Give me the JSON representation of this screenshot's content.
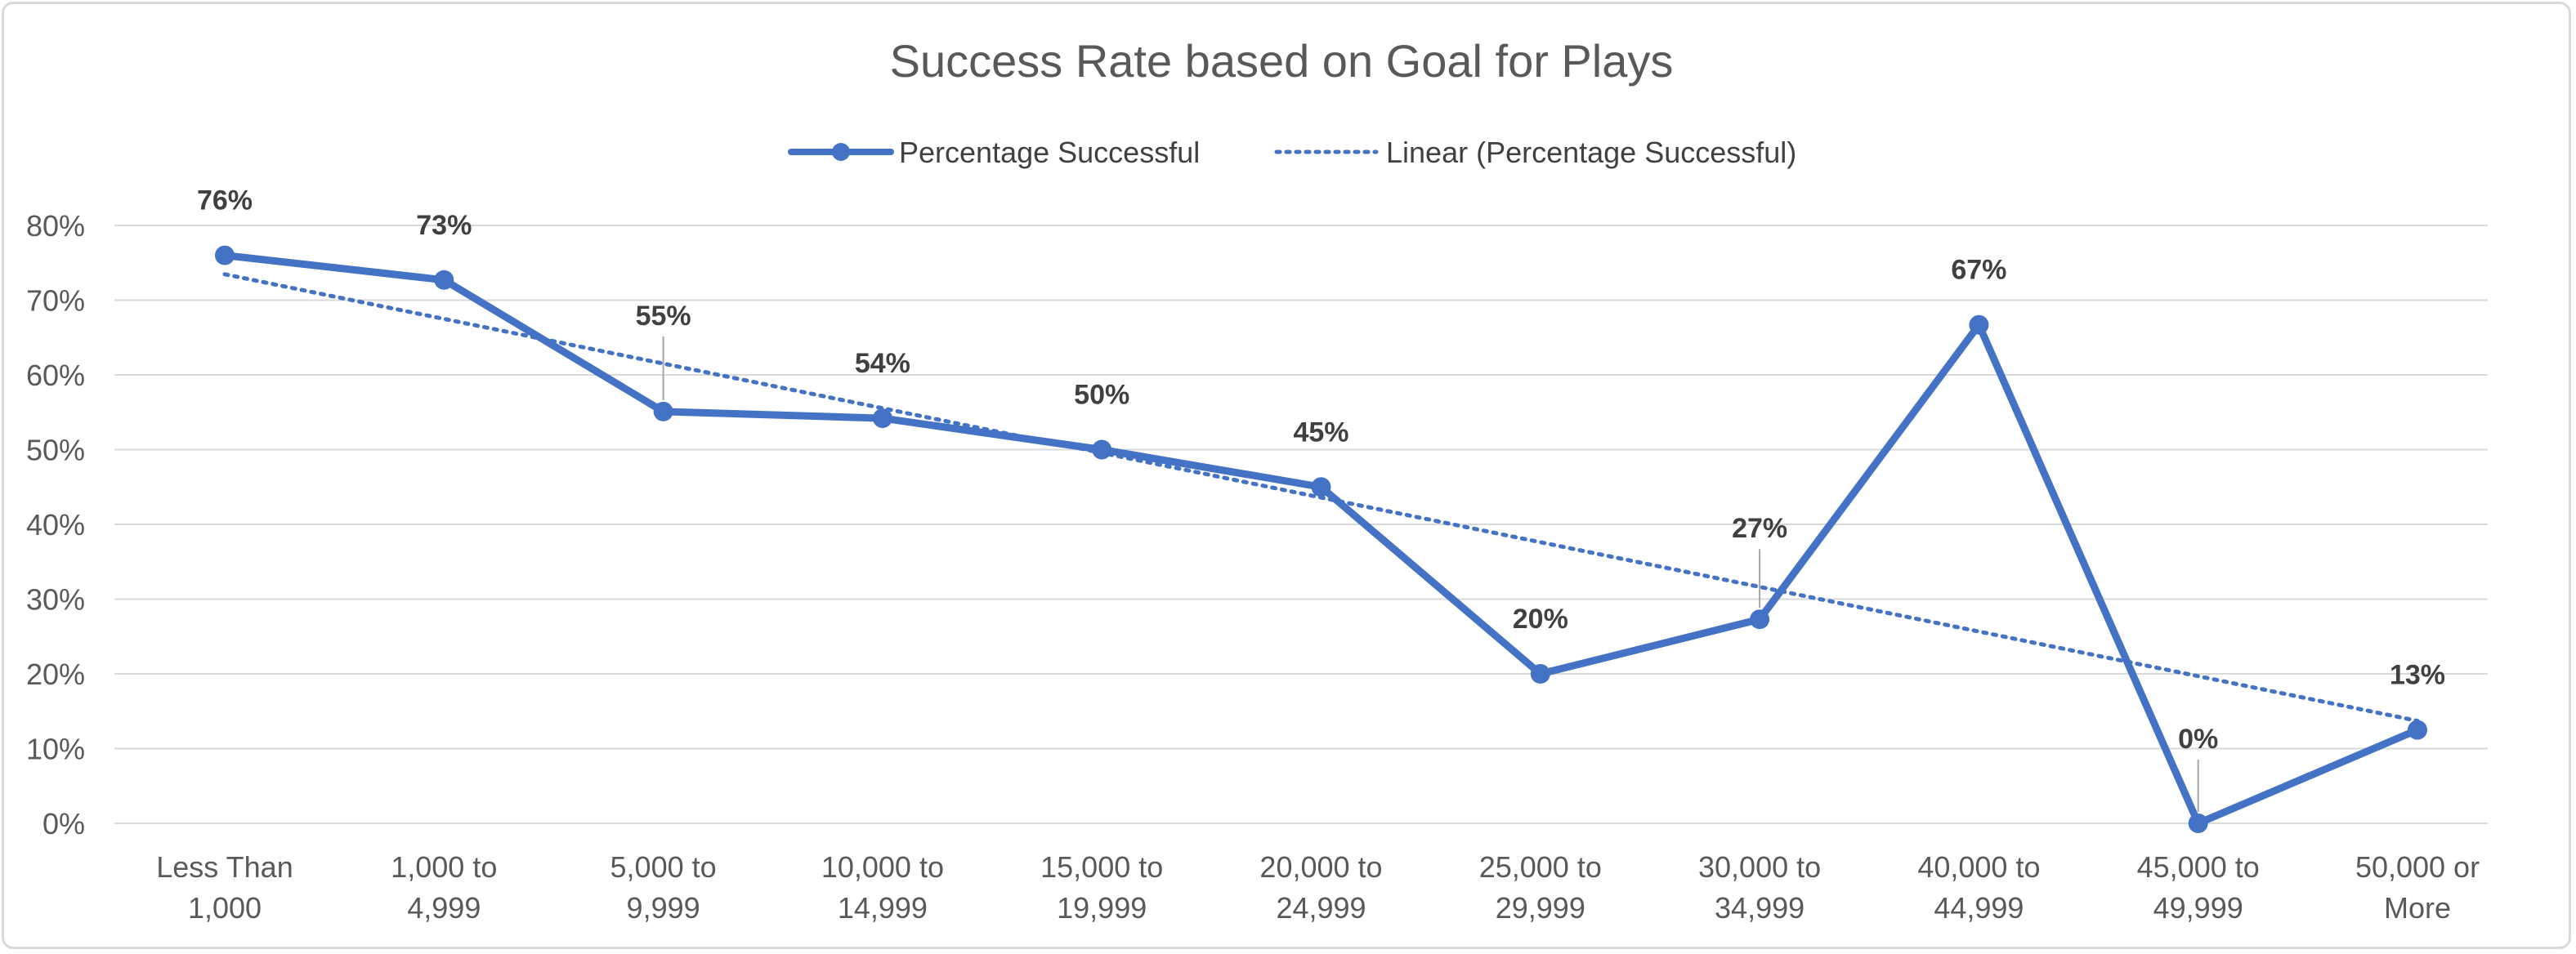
{
  "chart_data": {
    "type": "line",
    "title": "Success Rate based on Goal for Plays",
    "categories": [
      [
        "Less Than",
        "1,000"
      ],
      [
        "1,000 to",
        "4,999"
      ],
      [
        "5,000 to",
        "9,999"
      ],
      [
        "10,000 to",
        "14,999"
      ],
      [
        "15,000 to",
        "19,999"
      ],
      [
        "20,000 to",
        "24,999"
      ],
      [
        "25,000 to",
        "29,999"
      ],
      [
        "30,000 to",
        "34,999"
      ],
      [
        "40,000 to",
        "44,999"
      ],
      [
        "45,000 to",
        "49,999"
      ],
      [
        "50,000 or",
        "More"
      ]
    ],
    "series": [
      {
        "name": "Percentage Successful",
        "values": [
          0.76,
          0.727,
          0.551,
          0.542,
          0.5,
          0.45,
          0.2,
          0.273,
          0.667,
          0.0,
          0.125
        ],
        "labels": [
          "76%",
          "73%",
          "55%",
          "54%",
          "50%",
          "45%",
          "20%",
          "27%",
          "67%",
          "0%",
          "13%"
        ],
        "color": "#4472c4",
        "marker": "circle"
      }
    ],
    "trendline": {
      "name": "Linear (Percentage Successful)",
      "type": "linear",
      "style": "dotted",
      "color": "#4472c4"
    },
    "yticks": [
      "0%",
      "10%",
      "20%",
      "30%",
      "40%",
      "50%",
      "60%",
      "70%",
      "80%"
    ],
    "ylim": [
      0,
      0.8
    ],
    "grid": true,
    "legend": "top-center"
  }
}
